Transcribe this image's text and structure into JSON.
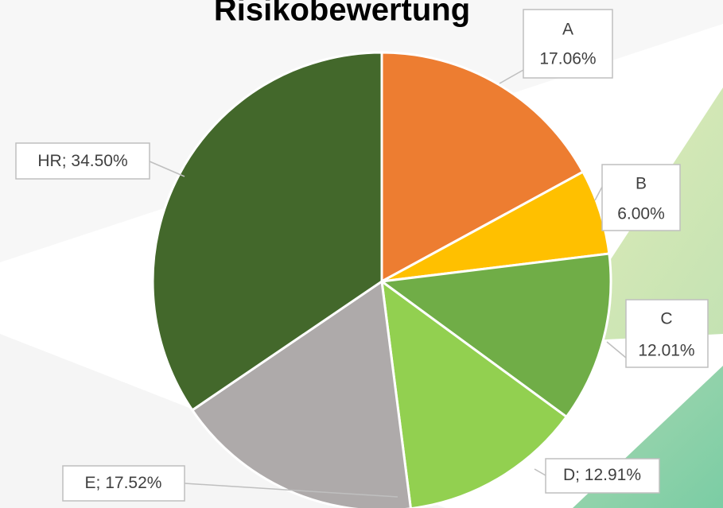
{
  "chart_data": {
    "type": "pie",
    "title": "Risikobewertung",
    "categories": [
      "A",
      "B",
      "C",
      "D",
      "E",
      "HR"
    ],
    "values": [
      17.06,
      6.0,
      12.01,
      12.91,
      17.52,
      34.5
    ],
    "value_labels": [
      "17.06%",
      "6.00%",
      "12.01%",
      "12.91%",
      "17.52%",
      "34.50%"
    ],
    "label_separator": "; ",
    "colors": [
      "#ED7D31",
      "#FFC000",
      "#70AD47",
      "#92D050",
      "#AEAAAA",
      "#43682B"
    ]
  }
}
